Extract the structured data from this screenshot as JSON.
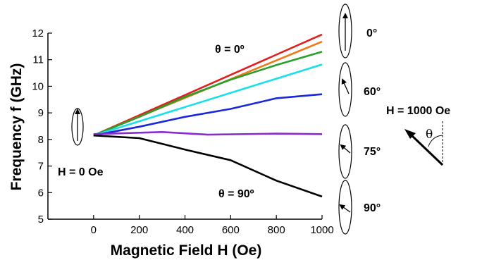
{
  "chart_data": {
    "type": "line",
    "xlabel": "Magnetic Field H (Oe)",
    "ylabel": "Frequency f (GHz)",
    "xlim": [
      -200,
      1000
    ],
    "ylim": [
      5,
      12
    ],
    "x_ticks": [
      "0",
      "200",
      "400",
      "600",
      "800",
      "1000"
    ],
    "y_ticks": [
      "5",
      "6",
      "7",
      "8",
      "9",
      "10",
      "11",
      "12"
    ],
    "grid": false,
    "series": [
      {
        "color": "#e02020",
        "x": [
          0,
          1000
        ],
        "y": [
          8.15,
          11.95
        ]
      },
      {
        "color": "#f07818",
        "x": [
          0,
          1000
        ],
        "y": [
          8.15,
          11.68
        ]
      },
      {
        "color": "#2aa02a",
        "x": [
          0,
          200,
          400,
          600,
          800,
          1000
        ],
        "y": [
          8.15,
          8.85,
          9.6,
          10.25,
          10.8,
          11.3
        ]
      },
      {
        "color": "#18e0ea",
        "x": [
          0,
          1000
        ],
        "y": [
          8.15,
          10.82
        ]
      },
      {
        "color": "#1a28d8",
        "x": [
          0,
          200,
          400,
          600,
          800,
          1000
        ],
        "y": [
          8.15,
          8.48,
          8.85,
          9.15,
          9.55,
          9.7
        ]
      },
      {
        "color": "#8a2ad0",
        "x": [
          0,
          300,
          500,
          800,
          1000
        ],
        "y": [
          8.2,
          8.28,
          8.18,
          8.22,
          8.2
        ]
      },
      {
        "color": "#000000",
        "x": [
          0,
          200,
          400,
          600,
          800,
          1000
        ],
        "y": [
          8.15,
          8.05,
          7.62,
          7.22,
          6.45,
          5.85
        ]
      }
    ],
    "annotations": {
      "top_label": "θ = 0º",
      "bottom_label": "θ = 90º",
      "zero_field": "H = 0 Oe",
      "field_value": "H = 1000 Oe",
      "theta_symbol": "θ",
      "angles": [
        "0°",
        "60°",
        "75°",
        "90°"
      ]
    }
  }
}
